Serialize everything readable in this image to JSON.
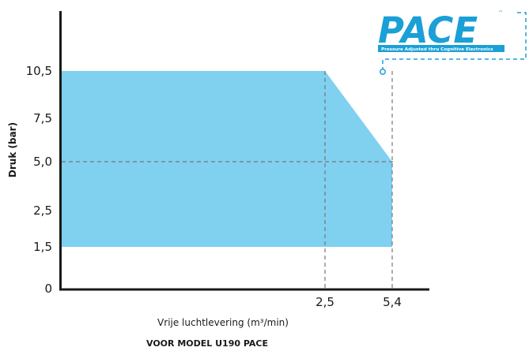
{
  "chart_data": {
    "type": "area",
    "xlabel": "Vrije luchtlevering (m³/min)",
    "ylabel": "Druk (bar)",
    "footer": "VOOR MODEL U190 PACE",
    "y_ticks": [
      "0",
      "1,5",
      "2,5",
      "5,0",
      "7,5",
      "10,5"
    ],
    "x_ticks": [
      "2,5",
      "5,4"
    ],
    "region": {
      "points": [
        {
          "x": 0,
          "y": 10.5
        },
        {
          "x": 2.5,
          "y": 10.5
        },
        {
          "x": 5.4,
          "y": 5.0
        },
        {
          "x": 5.4,
          "y": 1.5
        },
        {
          "x": 0,
          "y": 1.5
        }
      ],
      "color": "#80d0f0"
    },
    "reference_lines": [
      {
        "orientation": "horizontal",
        "value": 5.0
      },
      {
        "orientation": "vertical",
        "value": 2.5
      },
      {
        "orientation": "vertical",
        "value": 5.4
      }
    ],
    "grid": false
  },
  "logo": {
    "word": "PACE",
    "tm": "™",
    "tagline": "Pressure Adjusted thru Cognitive Electronics",
    "color": "#1aa0d6"
  }
}
